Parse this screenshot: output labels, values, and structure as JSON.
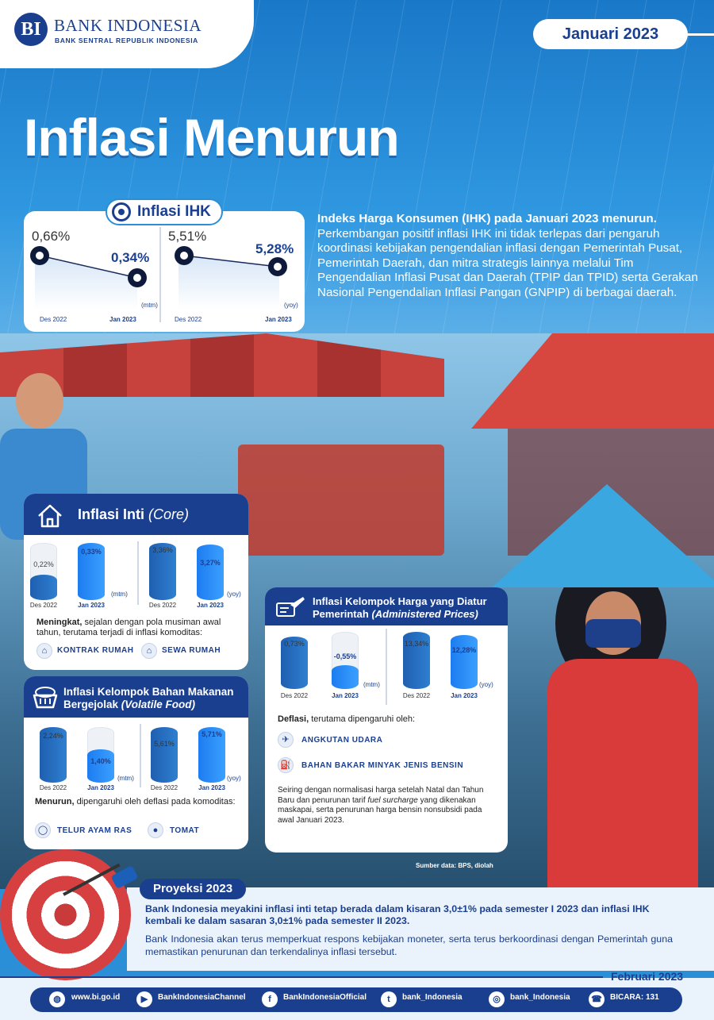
{
  "brand": {
    "mark": "BI",
    "name": "BANK INDONESIA",
    "subtitle": "BANK SENTRAL REPUBLIK INDONESIA"
  },
  "date_label": "Januari 2023",
  "title": "Inflasi Menurun",
  "ihk": {
    "pill": "Inflasi IHK",
    "mtm": {
      "prev": "0,66%",
      "now": "0,34%",
      "unit": "(mtm)",
      "prev_date": "Des 2022",
      "now_date": "Jan 2023"
    },
    "yoy": {
      "prev": "5,51%",
      "now": "5,28%",
      "unit": "(yoy)",
      "prev_date": "Des 2022",
      "now_date": "Jan 2023"
    }
  },
  "intro": {
    "lead": "Indeks Harga Konsumen (IHK) pada Januari 2023 menurun.",
    "body": "Perkembangan positif inflasi IHK ini tidak terlepas dari pengaruh koordinasi kebijakan pengendalian inflasi dengan Pemerintah Pusat, Pemerintah Daerah, dan mitra strategis lainnya melalui Tim Pengendalian Inflasi Pusat dan Daerah (TPIP dan TPID) serta Gerakan Nasional Pengendalian Inflasi Pangan (GNPIP) di berbagai daerah."
  },
  "core": {
    "title": "Inflasi Inti",
    "title_it": "(Core)",
    "mtm": {
      "prev": "0,22%",
      "now": "0,33%",
      "unit": "(mtm)",
      "prev_date": "Des 2022",
      "now_date": "Jan 2023"
    },
    "yoy": {
      "prev": "3,36%",
      "now": "3,27%",
      "unit": "(yoy)",
      "prev_date": "Des 2022",
      "now_date": "Jan 2023"
    },
    "note_bold": "Meningkat,",
    "note": "sejalan dengan pola musiman awal tahun, terutama terjadi di inflasi komoditas:",
    "items": [
      "KONTRAK RUMAH",
      "SEWA RUMAH"
    ]
  },
  "vf": {
    "title1": "Inflasi Kelompok Bahan Makanan",
    "title2": "Bergejolak",
    "title_it": "(Volatile Food)",
    "mtm": {
      "prev": "2,24%",
      "now": "1,40%",
      "unit": "(mtm)",
      "prev_date": "Des 2022",
      "now_date": "Jan 2023"
    },
    "yoy": {
      "prev": "5,61%",
      "now": "5,71%",
      "unit": "(yoy)",
      "prev_date": "Des 2022",
      "now_date": "Jan 2023"
    },
    "note_bold": "Menurun,",
    "note": "dipengaruhi oleh deflasi pada komoditas:",
    "items": [
      "TELUR AYAM RAS",
      "TOMAT"
    ]
  },
  "ap": {
    "title1": "Inflasi Kelompok Harga yang Diatur",
    "title2": "Pemerintah",
    "title_it": "(Administered Prices)",
    "mtm": {
      "prev": "0,73%",
      "now": "-0,55%",
      "unit": "(mtm)",
      "prev_date": "Des 2022",
      "now_date": "Jan 2023"
    },
    "yoy": {
      "prev": "13,34%",
      "now": "12,28%",
      "unit": "(yoy)",
      "prev_date": "Des 2022",
      "now_date": "Jan 2023"
    },
    "note_bold": "Deflasi,",
    "note": "terutama dipengaruhi oleh:",
    "items": [
      "ANGKUTAN UDARA",
      "BAHAN BAKAR MINYAK JENIS BENSIN"
    ],
    "text1": "Seiring dengan normalisasi harga setelah Natal dan Tahun Baru dan penurunan tarif",
    "text_it": "fuel surcharge",
    "text2": "yang dikenakan maskapai, serta penurunan harga bensin nonsubsidi pada awal Januari 2023."
  },
  "source": "Sumber data: BPS, diolah",
  "projection": {
    "pill": "Proyeksi 2023",
    "t1": "Bank Indonesia meyakini inflasi inti tetap berada dalam kisaran 3,0±1% pada semester I 2023 dan inflasi IHK kembali ke dalam sasaran 3,0±1% pada semester II 2023.",
    "t2": "Bank Indonesia akan terus memperkuat respons kebijakan moneter, serta terus berkoordinasi dengan Pemerintah guna memastikan penurunan dan terkendalinya inflasi tersebut."
  },
  "footer_date": "Februari 2023",
  "footer": [
    {
      "icon": "web-icon",
      "label": "www.bi.go.id"
    },
    {
      "icon": "youtube-icon",
      "label": "BankIndonesiaChannel"
    },
    {
      "icon": "facebook-icon",
      "label": "BankIndonesiaOfficial"
    },
    {
      "icon": "twitter-icon",
      "label": "bank_Indonesia"
    },
    {
      "icon": "instagram-icon",
      "label": "bank_Indonesia"
    },
    {
      "icon": "phone-icon",
      "label": "BICARA: 131"
    }
  ],
  "colors": {
    "primary": "#1b3f8f",
    "accent": "#2b8fd8",
    "bar_now": "#1d7cf0",
    "bar_prev": "#1f5fb0",
    "red": "#d64040"
  }
}
